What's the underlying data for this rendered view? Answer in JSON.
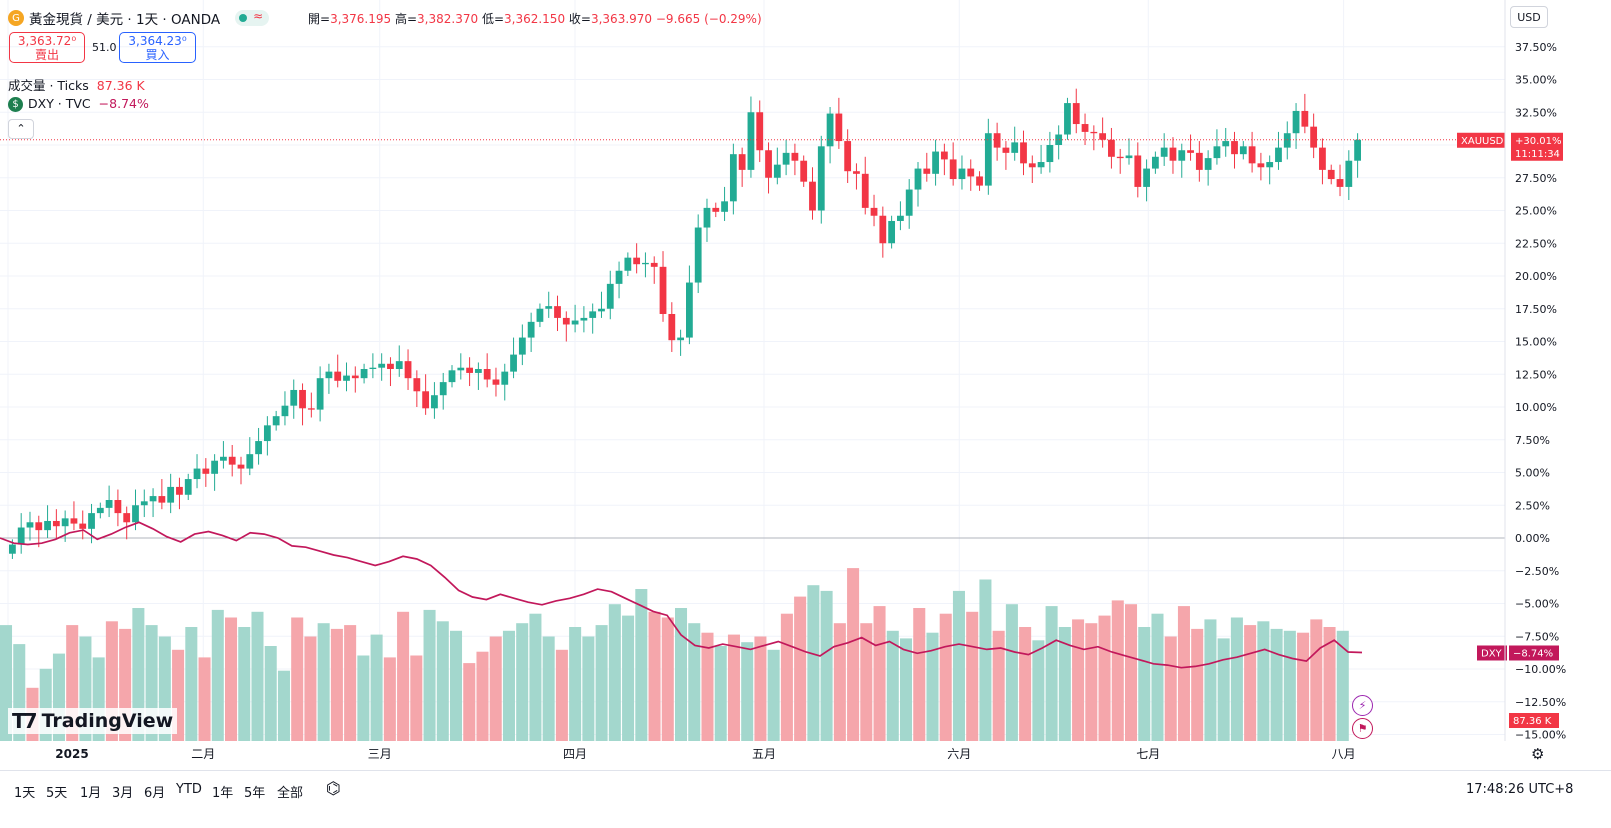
{
  "header": {
    "symbol_title": "黃金現貨 / 美元 · 1天 · OANDA",
    "open_label": "開=",
    "open": "3,376.195",
    "high_label": "高=",
    "high": "3,382.370",
    "low_label": "低=",
    "low": "3,362.150",
    "close_label": "收=",
    "close": "3,363.970",
    "change": "−9.665 (−0.29%)"
  },
  "trade": {
    "sell_price": "3,363.72⁰",
    "sell_label": "賣出",
    "spread": "51.0",
    "buy_price": "3,364.23⁰",
    "buy_label": "買入"
  },
  "legend": {
    "volume_name": "成交量 · Ticks",
    "volume_value": "87.36 K",
    "dxy_name": "DXY · TVC",
    "dxy_value": "−8.74%"
  },
  "toolbar": {
    "currency": "USD",
    "collapse_icon": "chevron-up-icon",
    "logo_text": "TradingView"
  },
  "bottom": {
    "ranges": [
      "1天",
      "5天",
      "1月",
      "3月",
      "6月",
      "YTD",
      "1年",
      "5年",
      "全部"
    ],
    "time": "17:48:26 UTC+8"
  },
  "colors": {
    "up": "#22ab94",
    "down": "#f23645",
    "dxy": "#c2185b",
    "vol_up": "#a3d7cd",
    "vol_down": "#f5a6ab"
  },
  "chart_data": {
    "type": "candlestick",
    "y_axis": {
      "unit": "percent",
      "ticks": [
        "37.50%",
        "35.00%",
        "32.50%",
        "30.00%",
        "27.50%",
        "25.00%",
        "22.50%",
        "20.00%",
        "17.50%",
        "15.00%",
        "12.50%",
        "10.00%",
        "7.50%",
        "5.00%",
        "2.50%",
        "0.00%",
        "−2.50%",
        "−5.00%",
        "−7.50%",
        "−10.00%",
        "−12.50%",
        "−15.00%"
      ],
      "ylim": [
        -15,
        38
      ]
    },
    "x_axis": {
      "ticks": [
        "2025",
        "二月",
        "三月",
        "四月",
        "五月",
        "六月",
        "七月",
        "八月"
      ],
      "tick_x_days": [
        0,
        31,
        59,
        90,
        120,
        151,
        181,
        212
      ]
    },
    "gold_close_pct": [
      -0.5,
      0.8,
      1.2,
      0.6,
      1.3,
      0.9,
      1.5,
      1.1,
      0.7,
      1.9,
      2.3,
      2.9,
      1.9,
      1.2,
      2.5,
      2.8,
      3.2,
      2.7,
      3.9,
      3.3,
      4.5,
      5.3,
      4.9,
      5.9,
      6.2,
      5.6,
      5.3,
      6.4,
      7.4,
      8.6,
      9.3,
      10.1,
      11.3,
      9.9,
      9.8,
      12.2,
      12.7,
      12.0,
      12.4,
      12.2,
      12.9,
      13.0,
      13.3,
      12.9,
      13.5,
      12.2,
      11.2,
      9.9,
      10.9,
      11.9,
      12.8,
      13.0,
      12.6,
      12.9,
      12.1,
      11.7,
      12.7,
      14.0,
      15.3,
      16.5,
      17.5,
      17.7,
      16.8,
      16.3,
      16.6,
      16.8,
      17.3,
      17.5,
      19.4,
      20.4,
      21.4,
      20.9,
      21.0,
      20.7,
      17.1,
      15.1,
      15.3,
      19.5,
      23.7,
      25.2,
      24.9,
      25.7,
      29.3,
      28.1,
      32.5,
      29.6,
      27.5,
      28.5,
      29.4,
      28.8,
      27.2,
      25.0,
      29.9,
      32.4,
      30.3,
      28.0,
      27.8,
      25.2,
      24.6,
      22.5,
      24.2,
      24.6,
      26.6,
      28.2,
      27.8,
      29.5,
      28.9,
      27.4,
      28.2,
      27.6,
      26.9,
      30.9,
      29.8,
      29.4,
      30.2,
      28.6,
      28.3,
      28.7,
      30.0,
      30.8,
      33.2,
      31.6,
      31.0,
      30.9,
      30.4,
      29.1,
      29.0,
      29.2,
      26.8,
      28.2,
      29.1,
      29.8,
      28.8,
      29.6,
      29.4,
      28.1,
      29.0,
      29.9,
      30.3,
      29.3,
      29.9,
      28.6,
      28.3,
      28.7,
      29.8,
      30.9,
      32.6,
      31.4,
      29.8,
      28.1,
      27.4,
      26.8,
      28.8,
      30.4
    ],
    "dxy_pct": [
      0.0,
      -0.4,
      -0.5,
      -0.4,
      -0.1,
      0.4,
      0.6,
      -0.1,
      0.3,
      0.8,
      1.2,
      0.7,
      0.1,
      -0.3,
      0.3,
      0.5,
      0.2,
      -0.2,
      0.4,
      0.3,
      0.0,
      -0.6,
      -0.7,
      -1.0,
      -1.3,
      -1.5,
      -1.8,
      -2.1,
      -1.8,
      -1.4,
      -1.6,
      -2.1,
      -3.0,
      -4.0,
      -4.5,
      -4.7,
      -4.3,
      -4.6,
      -4.9,
      -5.1,
      -4.8,
      -4.6,
      -4.3,
      -3.9,
      -4.1,
      -4.6,
      -5.1,
      -5.6,
      -5.9,
      -7.4,
      -8.2,
      -8.4,
      -8.1,
      -8.3,
      -8.5,
      -8.2,
      -7.9,
      -8.3,
      -8.7,
      -9.0,
      -8.3,
      -8.0,
      -7.6,
      -8.2,
      -7.9,
      -8.5,
      -8.8,
      -8.6,
      -8.3,
      -8.1,
      -8.3,
      -8.5,
      -8.4,
      -8.7,
      -8.9,
      -8.4,
      -7.8,
      -8.2,
      -8.5,
      -8.3,
      -8.7,
      -9.0,
      -9.3,
      -9.6,
      -9.7,
      -9.9,
      -9.8,
      -9.6,
      -9.3,
      -9.1,
      -8.8,
      -8.5,
      -8.9,
      -9.2,
      -9.4,
      -8.4,
      -7.8,
      -8.7,
      -8.74
    ],
    "volume_pct_of_max": [
      61,
      51,
      28,
      38,
      46,
      61,
      55,
      44,
      63,
      59,
      70,
      61,
      55,
      48,
      60,
      44,
      69,
      65,
      60,
      68,
      50,
      37,
      65,
      55,
      62,
      59,
      61,
      45,
      56,
      44,
      68,
      45,
      69,
      63,
      58,
      41,
      47,
      55,
      58,
      62,
      67,
      55,
      48,
      60,
      55,
      61,
      72,
      66,
      80,
      68,
      65,
      70,
      62,
      57,
      50,
      56,
      52,
      55,
      48,
      67,
      76,
      82,
      79,
      62,
      91,
      62,
      71,
      58,
      54,
      70,
      57,
      67,
      79,
      68,
      85,
      58,
      72,
      60,
      53,
      71,
      60,
      64,
      62,
      66,
      74,
      72,
      60,
      67,
      55,
      71,
      59,
      64,
      54,
      65,
      61,
      63,
      59,
      58,
      57,
      64,
      60,
      58
    ]
  }
}
